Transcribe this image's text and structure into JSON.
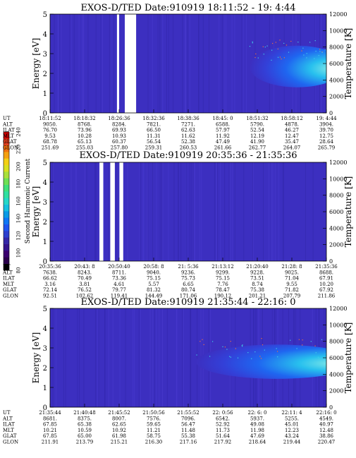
{
  "colorbar": {
    "label": "Second Harmonic Current",
    "ticks": [
      "80",
      "100",
      "120",
      "140",
      "160",
      "180",
      "200",
      "220",
      "240"
    ],
    "colors": [
      "#000000",
      "#2a004a",
      "#3a006e",
      "#33148c",
      "#3427a6",
      "#2d3fcf",
      "#1f55f0",
      "#0f77f5",
      "#0a9be6",
      "#16c0e0",
      "#25d8c8",
      "#30e0a0",
      "#40e07a",
      "#6ee055",
      "#a8e03a",
      "#d8e020",
      "#f3d015",
      "#f5a010",
      "#f07010",
      "#e04020",
      "#cc0000"
    ]
  },
  "panels": [
    {
      "title": "EXOS-D/TED   Date:910919  18:11:52 - 19: 4:44",
      "ylabel": "Energy [eV]",
      "y2label": "Temperature [K]",
      "yticks": [
        "0",
        "1",
        "2",
        "3",
        "4",
        "5"
      ],
      "y2ticks": [
        "0",
        "2000",
        "4000",
        "6000",
        "8000",
        "10000",
        "12000"
      ],
      "rows": [
        {
          "name": "UT",
          "values": [
            "18:11:52",
            "18:18:32",
            "18:26:36",
            "18:32:36",
            "18:38:36",
            "18:45: 0",
            "18:51:32",
            "18:58:12",
            "19: 4:44"
          ]
        },
        {
          "name": "ALT",
          "values": [
            "9050.",
            "8768.",
            "8284.",
            "7821.",
            "7271.",
            "6588.",
            "5790.",
            "4878.",
            "3904."
          ]
        },
        {
          "name": "ILAT",
          "values": [
            "76.70",
            "73.96",
            "69.93",
            "66.50",
            "62.63",
            "57.97",
            "52.54",
            "46.27",
            "39.70"
          ]
        },
        {
          "name": "MLT",
          "values": [
            "9.53",
            "10.28",
            "10.93",
            "11.31",
            "11.62",
            "11.92",
            "12.19",
            "12.47",
            "12.75"
          ]
        },
        {
          "name": "GLAT",
          "values": [
            "68.78",
            "65.13",
            "60.37",
            "56.54",
            "52.38",
            "47.49",
            "41.90",
            "35.47",
            "28.64"
          ]
        },
        {
          "name": "GLON",
          "values": [
            "251.69",
            "255.03",
            "257.80",
            "259.31",
            "260.53",
            "261.66",
            "262.77",
            "264.07",
            "265.79"
          ]
        }
      ]
    },
    {
      "title": "EXOS-D/TED   Date:910919  20:35:36 - 21:35:36",
      "ylabel": "Energy [eV]",
      "y2label": "Temperature [K]",
      "yticks": [
        "0",
        "1",
        "2",
        "3",
        "4",
        "5"
      ],
      "y2ticks": [
        "0",
        "2000",
        "4000",
        "6000",
        "8000",
        "10000",
        "12000"
      ],
      "rows": [
        {
          "name": "UT",
          "values": [
            "20:35:36",
            "20:43: 8",
            "20:50:40",
            "20:58: 8",
            "21: 5:36",
            "21:13:12",
            "21:20:40",
            "21:28: 8",
            "21:35:36"
          ]
        },
        {
          "name": "ALT",
          "values": [
            "7638.",
            "8243.",
            "8711.",
            "9040.",
            "9236.",
            "9299.",
            "9228.",
            "9025.",
            "8688."
          ]
        },
        {
          "name": "ILAT",
          "values": [
            "66.62",
            "70.49",
            "73.36",
            "75.15",
            "75.73",
            "75.15",
            "73.51",
            "71.04",
            "67.91"
          ]
        },
        {
          "name": "MLT",
          "values": [
            "3.16",
            "3.81",
            "4.61",
            "5.57",
            "6.65",
            "7.76",
            "8.74",
            "9.55",
            "10.20"
          ]
        },
        {
          "name": "GLAT",
          "values": [
            "72.14",
            "76.52",
            "79.77",
            "81.32",
            "80.74",
            "78.47",
            "75.38",
            "71.82",
            "67.92"
          ]
        },
        {
          "name": "GLON",
          "values": [
            "92.51",
            "102.62",
            "119.41",
            "144.49",
            "171.06",
            "190.12",
            "201.21",
            "207.79",
            "211.86"
          ]
        }
      ]
    },
    {
      "title": "EXOS-D/TED   Date:910919  21:35:44 - 22:16: 0",
      "ylabel": "Energy [eV]",
      "y2label": "Temperature [K]",
      "yticks": [
        "0",
        "1",
        "2",
        "3",
        "4",
        "5"
      ],
      "y2ticks": [
        "0",
        "2000",
        "4000",
        "6000",
        "8000",
        "10000",
        "12000"
      ],
      "rows": [
        {
          "name": "UT",
          "values": [
            "21:35:44",
            "21:40:48",
            "21:45:52",
            "21:50:56",
            "21:55:52",
            "22: 0:56",
            "22: 6: 0",
            "22:11: 4",
            "22:16: 0"
          ]
        },
        {
          "name": "ALT",
          "values": [
            "8681.",
            "8375.",
            "8007.",
            "7576.",
            "7096.",
            "6542.",
            "5937.",
            "5255.",
            "4549."
          ]
        },
        {
          "name": "ILAT",
          "values": [
            "67.85",
            "65.38",
            "62.65",
            "59.65",
            "56.47",
            "52.92",
            "49.08",
            "45.01",
            "40.97"
          ]
        },
        {
          "name": "MLT",
          "values": [
            "10.21",
            "10.59",
            "10.92",
            "11.21",
            "11.48",
            "11.73",
            "11.98",
            "12.23",
            "12.48"
          ]
        },
        {
          "name": "GLAT",
          "values": [
            "67.85",
            "65.00",
            "61.98",
            "58.75",
            "55.38",
            "51.64",
            "47.69",
            "43.24",
            "38.86"
          ]
        },
        {
          "name": "GLON",
          "values": [
            "211.91",
            "213.79",
            "215.21",
            "216.30",
            "217.16",
            "217.92",
            "218.64",
            "219.44",
            "220.47"
          ]
        }
      ]
    }
  ],
  "chart_data": [
    {
      "type": "heatmap",
      "title": "EXOS-D/TED   Date:910919  18:11:52 - 19: 4:44",
      "ylabel": "Energy [eV]",
      "y2label": "Temperature [K]",
      "ylim": [
        0,
        5
      ],
      "y2lim": [
        0,
        12000
      ],
      "x": [
        "18:11:52",
        "18:18:32",
        "18:26:36",
        "18:32:36",
        "18:38:36",
        "18:45: 0",
        "18:51:32",
        "18:58:12",
        "19: 4:44"
      ],
      "colorbar": {
        "label": "Second Harmonic Current",
        "range": [
          80,
          240
        ]
      },
      "data_gaps_ut": [
        [
          "18:24:40",
          "18:25:05"
        ],
        [
          "18:26:10",
          "18:28:20"
        ]
      ],
      "features": [
        {
          "ut_range": [
            "18:50:00",
            "19: 4:44"
          ],
          "energy_range": [
            1.5,
            3.2
          ],
          "level": "high"
        }
      ]
    },
    {
      "type": "heatmap",
      "title": "EXOS-D/TED   Date:910919  20:35:36 - 21:35:36",
      "ylabel": "Energy [eV]",
      "y2label": "Temperature [K]",
      "ylim": [
        0,
        5
      ],
      "y2lim": [
        0,
        12000
      ],
      "x": [
        "20:35:36",
        "20:43: 8",
        "20:50:40",
        "20:58: 8",
        "21: 5:36",
        "21:13:12",
        "21:20:40",
        "21:28: 8",
        "21:35:36"
      ],
      "colorbar": {
        "label": "Second Harmonic Current",
        "range": [
          80,
          240
        ]
      },
      "data_gaps_ut": [
        [
          "20:46:20",
          "20:47:10"
        ],
        [
          "20:48:40",
          "20:49:40"
        ],
        [
          "20:50:40",
          "20:51:30"
        ]
      ],
      "features": []
    },
    {
      "type": "heatmap",
      "title": "EXOS-D/TED   Date:910919  21:35:44 - 22:16: 0",
      "ylabel": "Energy [eV]",
      "y2label": "Temperature [K]",
      "ylim": [
        0,
        5
      ],
      "y2lim": [
        0,
        12000
      ],
      "x": [
        "21:35:44",
        "21:40:48",
        "21:45:52",
        "21:50:56",
        "21:55:52",
        "22: 0:56",
        "22: 6: 0",
        "22:11: 4",
        "22:16: 0"
      ],
      "colorbar": {
        "label": "Second Harmonic Current",
        "range": [
          80,
          240
        ]
      },
      "data_gaps_ut": [],
      "features": [
        {
          "ut_range": [
            "21:57:00",
            "22:16: 0"
          ],
          "energy_range": [
            1.6,
            3.0
          ],
          "level": "high"
        }
      ]
    }
  ]
}
